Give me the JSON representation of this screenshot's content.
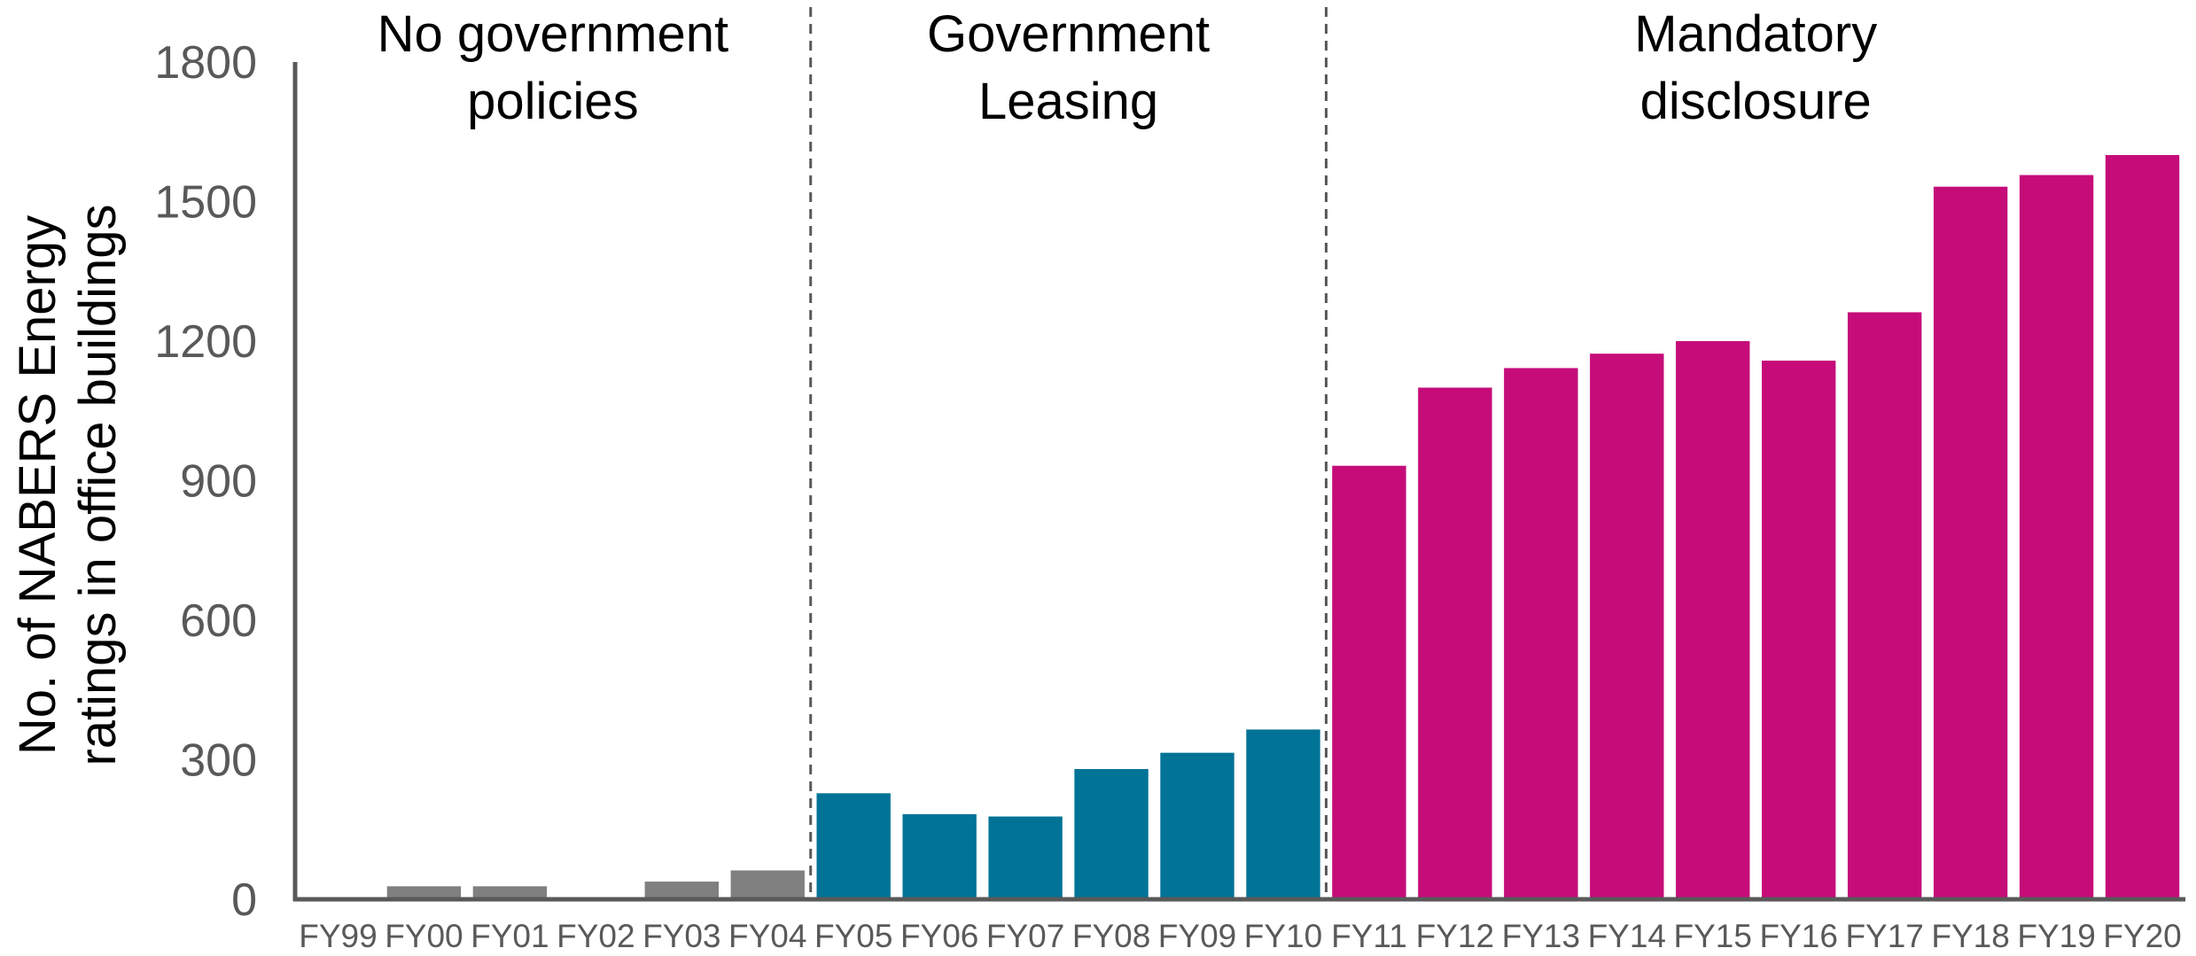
{
  "chart_data": {
    "type": "bar",
    "title": "",
    "xlabel": "",
    "ylabel": "No. of NABERS Energy ratings in office buildings",
    "ylabel_lines": [
      "No. of NABERS Energy",
      "ratings in office buildings"
    ],
    "ylim": [
      0,
      1800
    ],
    "yticks": [
      0,
      300,
      600,
      900,
      1200,
      1500,
      1800
    ],
    "grid": false,
    "legend": "none",
    "categories": [
      "FY99",
      "FY00",
      "FY01",
      "FY02",
      "FY03",
      "FY04",
      "FY05",
      "FY06",
      "FY07",
      "FY08",
      "FY09",
      "FY10",
      "FY11",
      "FY12",
      "FY13",
      "FY14",
      "FY15",
      "FY16",
      "FY17",
      "FY18",
      "FY19",
      "FY20"
    ],
    "values": [
      0,
      28,
      28,
      0,
      38,
      62,
      228,
      183,
      178,
      280,
      315,
      365,
      932,
      1100,
      1142,
      1173,
      1200,
      1158,
      1262,
      1532,
      1557,
      1600
    ],
    "bar_colors": [
      "#808080",
      "#808080",
      "#808080",
      "#808080",
      "#808080",
      "#808080",
      "#007396",
      "#007396",
      "#007396",
      "#007396",
      "#007396",
      "#007396",
      "#C50C79",
      "#C50C79",
      "#C50C79",
      "#C50C79",
      "#C50C79",
      "#C50C79",
      "#C50C79",
      "#C50C79",
      "#C50C79",
      "#C50C79"
    ],
    "annotations": [
      {
        "text_lines": [
          "No government",
          "policies"
        ],
        "from_category": "FY99",
        "to_category": "FY04"
      },
      {
        "text_lines": [
          "Government",
          "Leasing"
        ],
        "from_category": "FY05",
        "to_category": "FY10"
      },
      {
        "text_lines": [
          "Mandatory",
          "disclosure"
        ],
        "from_category": "FY11",
        "to_category": "FY20"
      }
    ],
    "dividers_after": [
      "FY04",
      "FY10"
    ],
    "colors": {
      "axis": "#595959",
      "tick_text": "#595959",
      "label_text": "#000000",
      "divider": "#595959"
    }
  }
}
